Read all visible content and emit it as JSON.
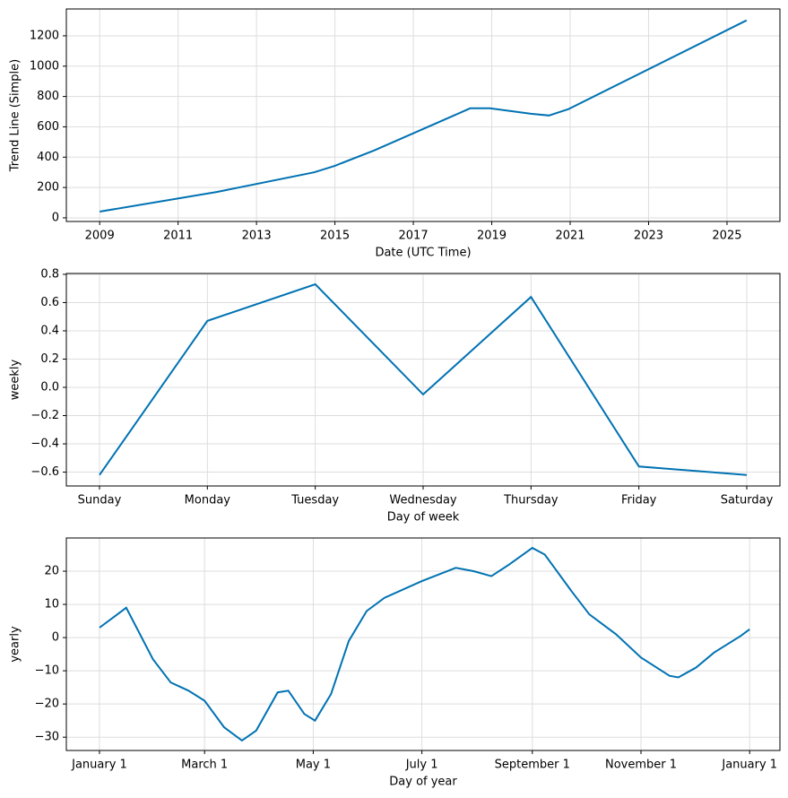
{
  "chart_data": [
    {
      "type": "line",
      "ylabel": "Trend Line (Simple)",
      "xlabel": "Date (UTC Time)",
      "color": "#0072B2",
      "grid": true,
      "x": [
        2009,
        2012,
        2014.47,
        2015,
        2016,
        2018.45,
        2018.95,
        2020,
        2020.46,
        2020.95,
        2025.5
      ],
      "values": [
        41,
        171,
        300,
        343,
        444,
        722,
        722,
        686,
        675,
        716,
        1302
      ],
      "xlim": [
        2008.15,
        2026.35
      ],
      "xticks": [
        2009,
        2011,
        2013,
        2015,
        2017,
        2019,
        2021,
        2023,
        2025
      ],
      "ylim": [
        -24,
        1377
      ],
      "yticks": [
        0,
        200,
        400,
        600,
        800,
        1000,
        1200
      ]
    },
    {
      "type": "line",
      "ylabel": "weekly",
      "xlabel": "Day of week",
      "color": "#0072B2",
      "grid": true,
      "categories": [
        "Sunday",
        "Monday",
        "Tuesday",
        "Wednesday",
        "Thursday",
        "Friday",
        "Saturday"
      ],
      "values": [
        -0.62,
        0.47,
        0.73,
        -0.05,
        0.64,
        -0.56,
        -0.62
      ],
      "ylim": [
        -0.698,
        0.806
      ],
      "yticks": [
        {
          "value": -0.6,
          "label": "−0.6"
        },
        {
          "value": -0.4,
          "label": "−0.4"
        },
        {
          "value": -0.2,
          "label": "−0.2"
        },
        {
          "value": 0,
          "label": "0.0"
        },
        0.2,
        0.4,
        0.6,
        0.8
      ]
    },
    {
      "type": "line",
      "ylabel": "yearly",
      "xlabel": "Day of year",
      "color": "#0072B2",
      "grid": true,
      "x": [
        0,
        15,
        30,
        40,
        50,
        59,
        70,
        80,
        88,
        100,
        106,
        115,
        121,
        130,
        140,
        150,
        160,
        181,
        200,
        210,
        220,
        230,
        243,
        250,
        265,
        275,
        290,
        304,
        320,
        325,
        335,
        345,
        360,
        365
      ],
      "values": [
        3,
        9,
        -6.5,
        -13.5,
        -16,
        -19,
        -27,
        -31,
        -28,
        -16.5,
        -16,
        -23,
        -25,
        -17,
        -1,
        8,
        12,
        17,
        21,
        20,
        18.5,
        22,
        27,
        25,
        14,
        7,
        1,
        -6,
        -11.5,
        -12,
        -9,
        -4.5,
        0.5,
        2.5
      ],
      "xlim": [
        -18.6,
        382
      ],
      "xticks": [
        {
          "value": 0,
          "label": "January 1"
        },
        {
          "value": 59,
          "label": "March 1"
        },
        {
          "value": 120,
          "label": "May 1"
        },
        {
          "value": 181,
          "label": "July 1"
        },
        {
          "value": 243,
          "label": "September 1"
        },
        {
          "value": 304,
          "label": "November 1"
        },
        {
          "value": 365,
          "label": "January 1"
        }
      ],
      "ylim": [
        -34,
        30
      ],
      "yticks": [
        {
          "value": -30,
          "label": "−30"
        },
        {
          "value": -20,
          "label": "−20"
        },
        {
          "value": -10,
          "label": "−10"
        },
        0,
        10,
        20
      ]
    }
  ]
}
